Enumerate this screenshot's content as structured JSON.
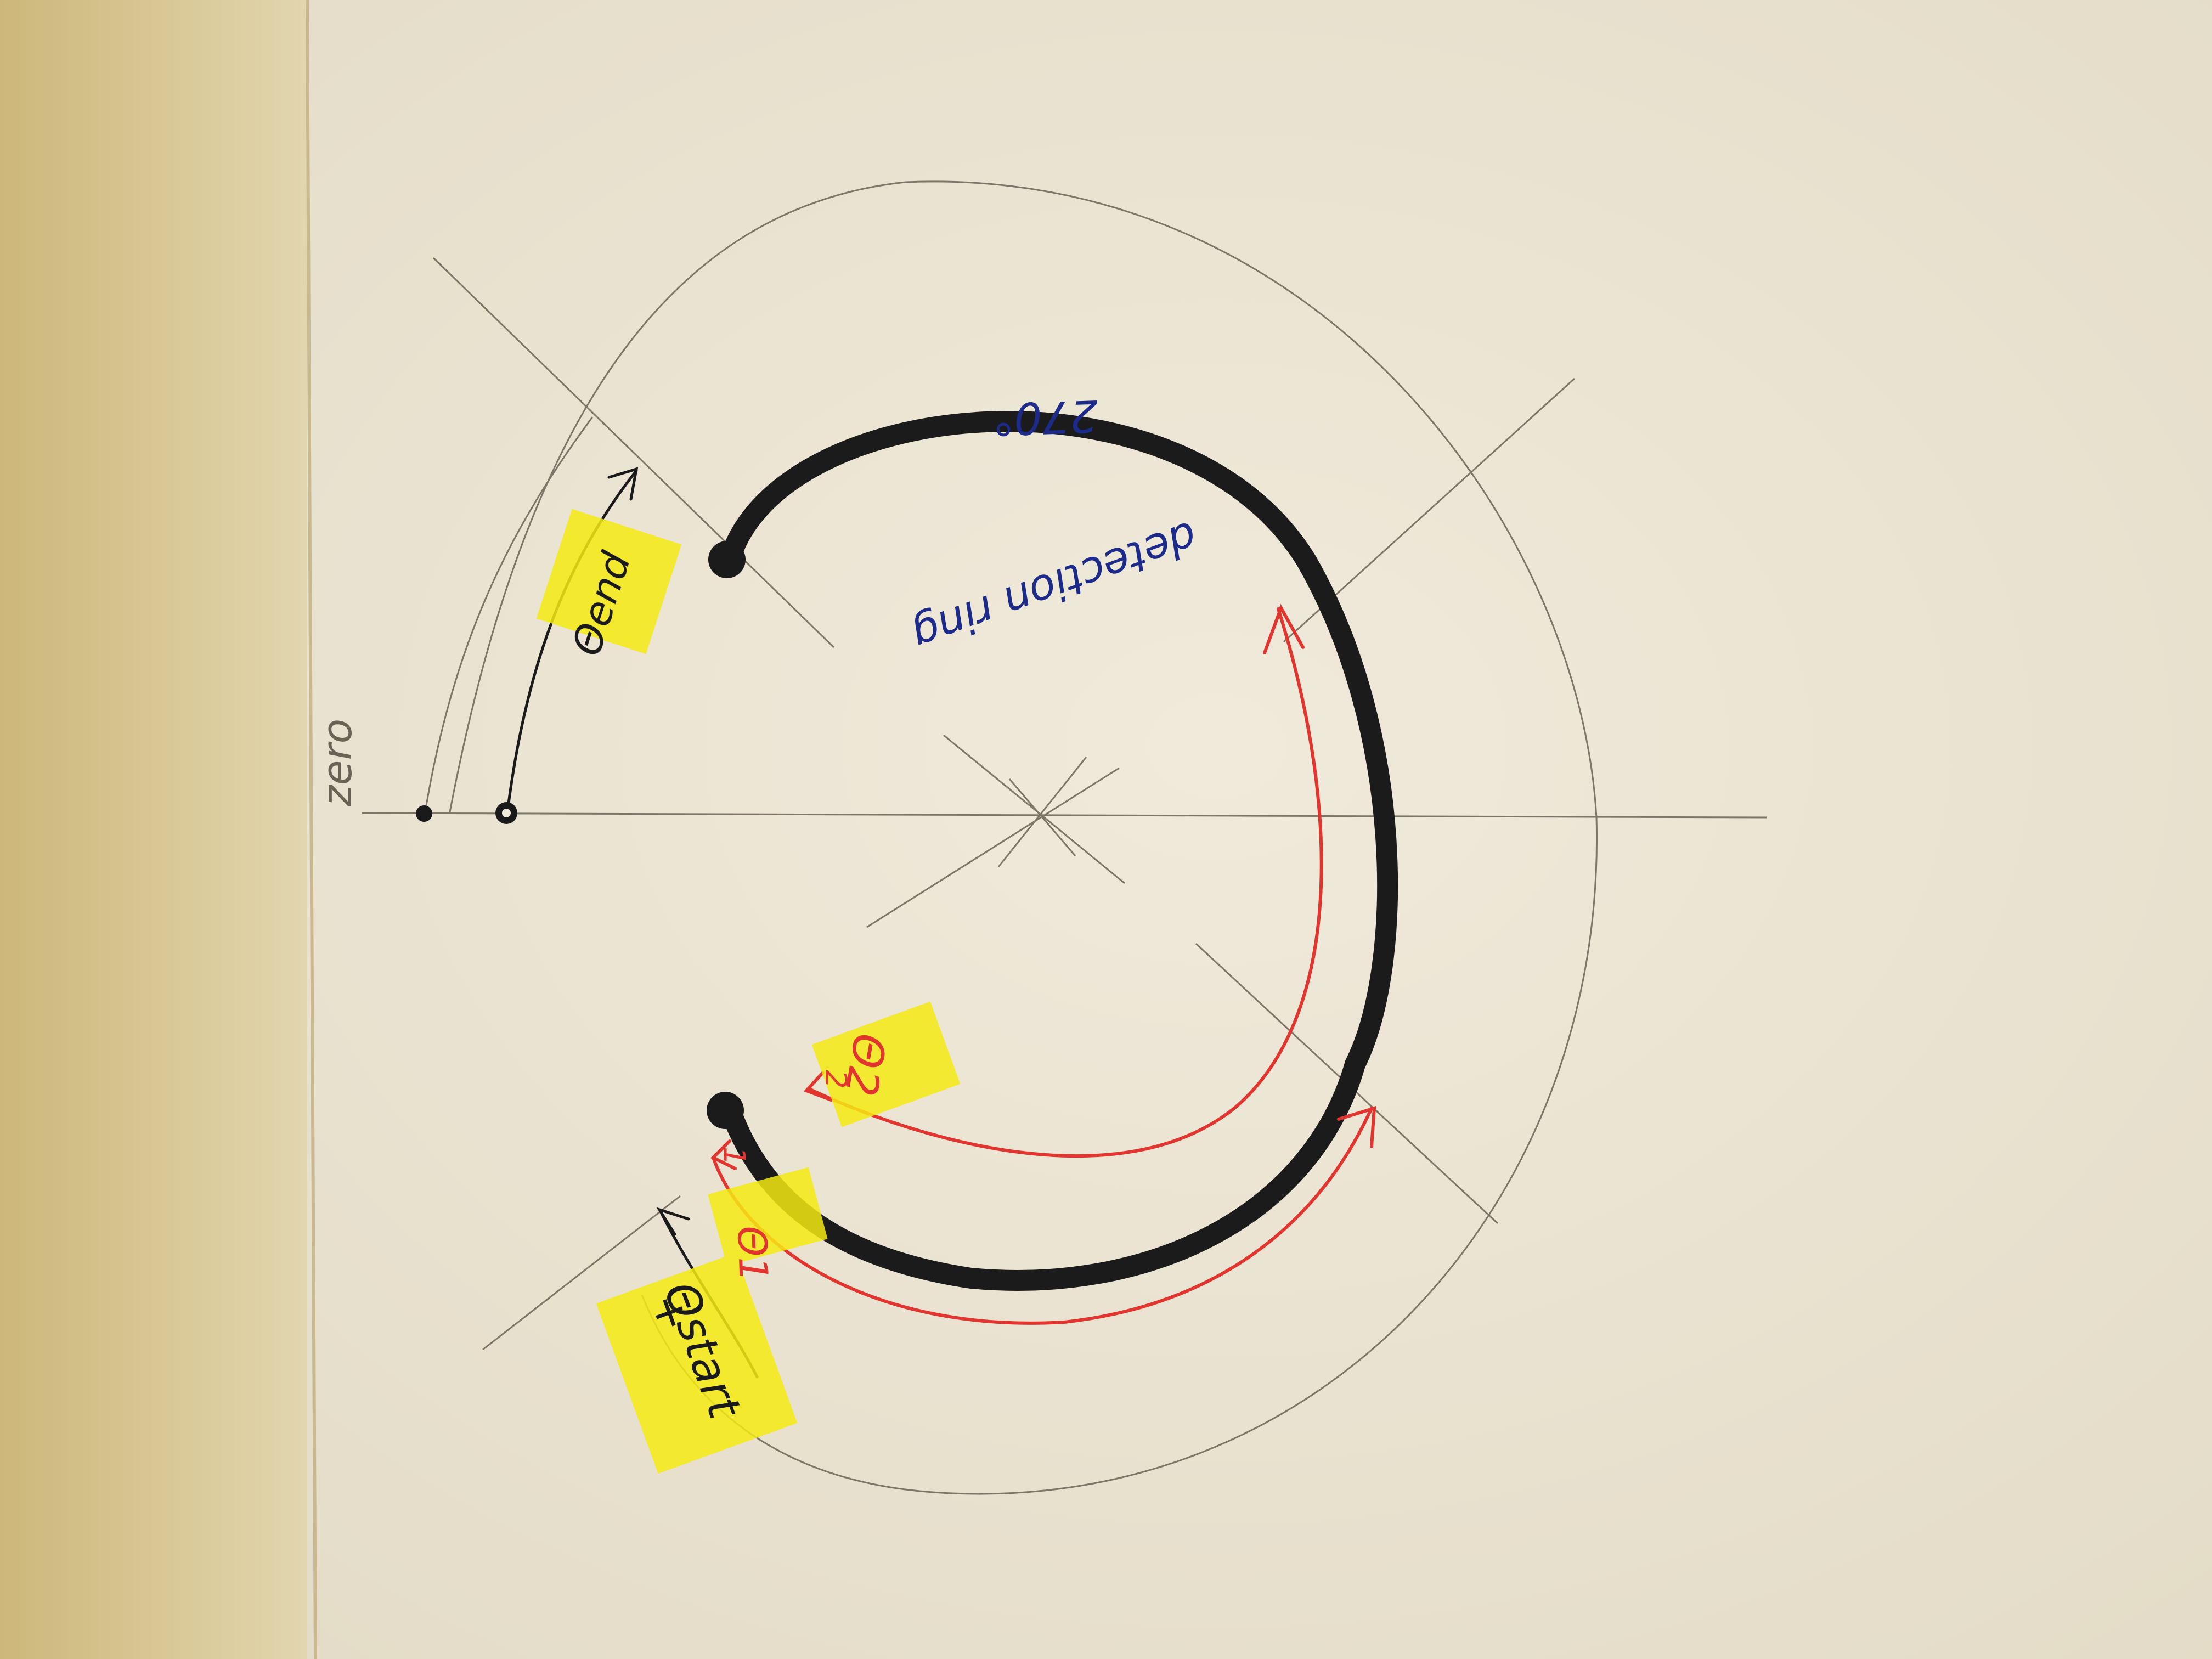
{
  "photo": {
    "subject": "hand-drawn sketch on paper",
    "colors": {
      "paper": "#ede6d3",
      "table_edge": "#d8c48f",
      "pencil": "#6b6256",
      "black_ink": "#1a1a1a",
      "red_ink": "#e2352f",
      "blue_ink": "#1c2a8a",
      "highlighter": "#f5ea12"
    }
  },
  "labels": {
    "detection_ring": "detection ring",
    "angle": "270°",
    "zero": "zero",
    "theta_end": "Θend",
    "theta_start": "Θstart",
    "theta_start_sign": "+",
    "theta_1": "Θ1",
    "theta_2": "Θ2",
    "arrow_1": "1",
    "arrow_2": "2"
  }
}
